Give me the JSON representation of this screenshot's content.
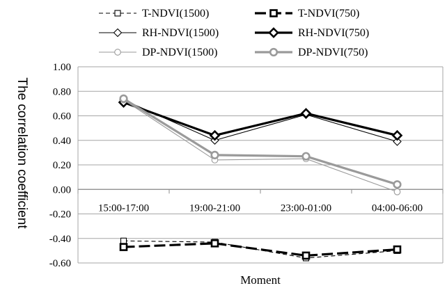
{
  "chart_data": {
    "type": "line",
    "title": "",
    "xlabel": "Moment",
    "ylabel": "The correlation coefficient",
    "ylim": [
      -0.6,
      1.0
    ],
    "yticks": [
      "1.00",
      "0.80",
      "0.60",
      "0.40",
      "0.20",
      "0.00",
      "-0.20",
      "-0.40",
      "-0.60"
    ],
    "categories": [
      "15:00-17:00",
      "19:00-21:00",
      "23:00-01:00",
      "04:00-06:00"
    ],
    "grid": true,
    "legend": "top",
    "series": [
      {
        "name": "T-NDVI(1500)",
        "values": [
          -0.42,
          -0.43,
          -0.56,
          -0.5
        ],
        "color": "#000000",
        "marker": "square",
        "style": "thin-dashed"
      },
      {
        "name": "T-NDVI(750)",
        "values": [
          -0.47,
          -0.44,
          -0.54,
          -0.49
        ],
        "color": "#000000",
        "marker": "square",
        "style": "thick-dashed"
      },
      {
        "name": "RH-NDVI(1500)",
        "values": [
          0.73,
          0.4,
          0.61,
          0.39
        ],
        "color": "#000000",
        "marker": "diamond",
        "style": "thin"
      },
      {
        "name": "RH-NDVI(750)",
        "values": [
          0.71,
          0.44,
          0.62,
          0.44
        ],
        "color": "#000000",
        "marker": "diamond",
        "style": "thick"
      },
      {
        "name": "DP-NDVI(1500)",
        "values": [
          0.73,
          0.24,
          0.25,
          -0.02
        ],
        "color": "#9a9a9a",
        "marker": "circle",
        "style": "thin"
      },
      {
        "name": "DP-NDVI(750)",
        "values": [
          0.74,
          0.28,
          0.27,
          0.04
        ],
        "color": "#9a9a9a",
        "marker": "circle",
        "style": "thick"
      }
    ]
  }
}
